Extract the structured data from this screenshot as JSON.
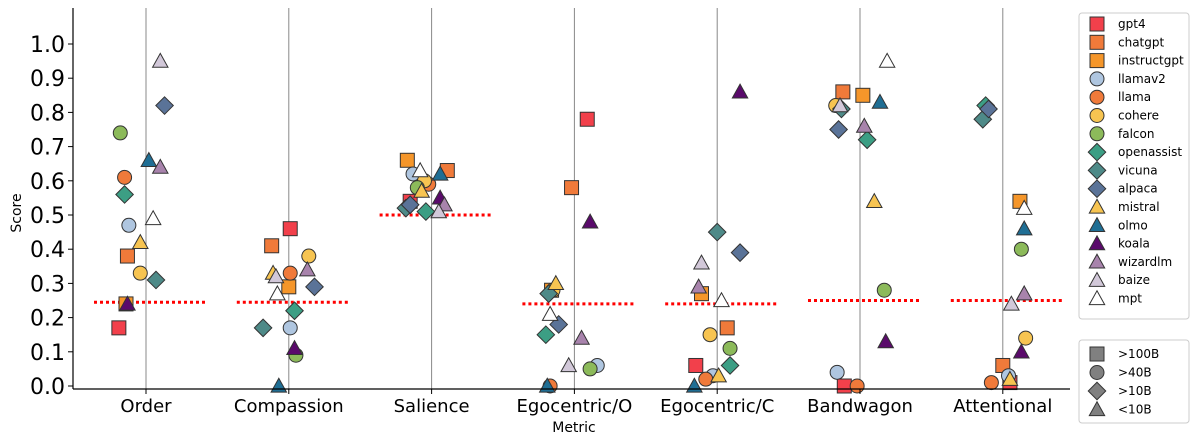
{
  "chart_data": {
    "type": "scatter",
    "title": "",
    "xlabel": "Metric",
    "ylabel": "Score",
    "ylim": [
      0,
      1.1
    ],
    "yticks": [
      "0.0",
      "0.1",
      "0.2",
      "0.3",
      "0.4",
      "0.5",
      "0.6",
      "0.7",
      "0.8",
      "0.9",
      "1.0"
    ],
    "categories": [
      "Order",
      "Compassion",
      "Salience",
      "Egocentric/O",
      "Egocentric/C",
      "Bandwagon",
      "Attentional"
    ],
    "baselines": [
      0.245,
      0.245,
      0.5,
      0.24,
      0.24,
      0.25,
      0.25
    ],
    "baseline_color": "#ff0000",
    "series": [
      {
        "name": "gpt4",
        "color": "#f2404b",
        "marker": "square",
        "values": [
          0.17,
          0.46,
          0.54,
          0.78,
          0.06,
          0.0,
          0.01
        ],
        "jitter": [
          -0.19,
          0.01,
          -0.15,
          0.09,
          -0.15,
          -0.11,
          0.05
        ]
      },
      {
        "name": "chatgpt",
        "color": "#f07a3a",
        "marker": "square",
        "values": [
          0.38,
          0.41,
          0.63,
          0.58,
          0.17,
          0.86,
          0.06
        ],
        "jitter": [
          -0.13,
          -0.12,
          0.11,
          -0.02,
          0.07,
          -0.12,
          0.0
        ]
      },
      {
        "name": "instructgpt",
        "color": "#f5962a",
        "marker": "square",
        "values": [
          0.24,
          0.29,
          0.66,
          0.28,
          0.27,
          0.85,
          0.54
        ],
        "jitter": [
          -0.14,
          0.0,
          -0.17,
          -0.16,
          -0.11,
          0.02,
          0.12
        ]
      },
      {
        "name": "llamav2",
        "color": "#afc6e0",
        "marker": "circle",
        "values": [
          0.47,
          0.17,
          0.62,
          0.06,
          0.03,
          0.04,
          0.03
        ],
        "jitter": [
          -0.12,
          0.01,
          -0.13,
          0.16,
          -0.03,
          -0.16,
          0.04
        ]
      },
      {
        "name": "llama",
        "color": "#f07a3a",
        "marker": "circle",
        "values": [
          0.61,
          0.33,
          0.59,
          0.0,
          0.02,
          0.0,
          0.01
        ],
        "jitter": [
          -0.15,
          0.01,
          -0.02,
          -0.17,
          -0.08,
          -0.02,
          -0.08
        ]
      },
      {
        "name": "cohere",
        "color": "#f7c451",
        "marker": "circle",
        "values": [
          0.33,
          0.38,
          0.6,
          0.28,
          0.15,
          0.82,
          0.14
        ],
        "jitter": [
          -0.04,
          0.14,
          -0.05,
          -0.15,
          -0.05,
          -0.17,
          0.16
        ]
      },
      {
        "name": "falcon",
        "color": "#8cba5a",
        "marker": "circle",
        "values": [
          0.74,
          0.09,
          0.58,
          0.05,
          0.11,
          0.28,
          0.4
        ],
        "jitter": [
          -0.18,
          0.05,
          -0.1,
          0.11,
          0.09,
          0.17,
          0.13
        ]
      },
      {
        "name": "openassist",
        "color": "#3c9e84",
        "marker": "diamond",
        "values": [
          0.56,
          0.22,
          0.51,
          0.15,
          0.06,
          0.72,
          0.82
        ],
        "jitter": [
          -0.15,
          0.04,
          -0.04,
          -0.2,
          0.09,
          0.05,
          -0.12
        ]
      },
      {
        "name": "vicuna",
        "color": "#4e8a88",
        "marker": "diamond",
        "values": [
          0.31,
          0.17,
          0.52,
          0.27,
          0.45,
          0.81,
          0.78
        ],
        "jitter": [
          0.07,
          -0.18,
          -0.18,
          -0.18,
          0.0,
          -0.13,
          -0.14
        ]
      },
      {
        "name": "alpaca",
        "color": "#5a7398",
        "marker": "diamond",
        "values": [
          0.82,
          0.29,
          0.53,
          0.18,
          0.39,
          0.75,
          0.81
        ],
        "jitter": [
          0.13,
          0.18,
          -0.15,
          -0.11,
          0.16,
          -0.15,
          -0.1
        ]
      },
      {
        "name": "mistral",
        "color": "#f7c451",
        "marker": "triangle",
        "values": [
          0.42,
          0.33,
          0.57,
          0.3,
          0.03,
          0.54,
          0.02
        ],
        "jitter": [
          -0.04,
          -0.11,
          -0.07,
          -0.13,
          0.01,
          0.1,
          0.05
        ]
      },
      {
        "name": "olmo",
        "color": "#1f6e94",
        "marker": "triangle",
        "values": [
          0.66,
          0.0,
          0.62,
          0.0,
          0.0,
          0.83,
          0.46
        ],
        "jitter": [
          0.02,
          -0.07,
          0.06,
          -0.19,
          -0.16,
          0.14,
          0.15
        ]
      },
      {
        "name": "koala",
        "color": "#5a0a6b",
        "marker": "triangle",
        "values": [
          0.24,
          0.11,
          0.55,
          0.48,
          0.86,
          0.13,
          0.1
        ],
        "jitter": [
          -0.13,
          0.04,
          0.06,
          0.11,
          0.16,
          0.18,
          0.13
        ]
      },
      {
        "name": "wizardlm",
        "color": "#a883ac",
        "marker": "triangle",
        "values": [
          0.64,
          0.34,
          0.53,
          0.14,
          0.29,
          0.76,
          0.27
        ],
        "jitter": [
          0.1,
          0.13,
          0.09,
          0.05,
          -0.13,
          0.03,
          0.15
        ]
      },
      {
        "name": "baize",
        "color": "#d2c8d9",
        "marker": "triangle",
        "values": [
          0.95,
          0.32,
          0.51,
          0.06,
          0.36,
          0.82,
          0.24
        ],
        "jitter": [
          0.1,
          -0.09,
          0.05,
          -0.04,
          -0.11,
          -0.14,
          0.06
        ]
      },
      {
        "name": "mpt",
        "color": "#ffffff",
        "marker": "triangle",
        "values": [
          0.49,
          0.27,
          0.63,
          0.21,
          0.25,
          0.95,
          0.52
        ],
        "jitter": [
          0.05,
          -0.08,
          -0.08,
          -0.17,
          0.03,
          0.19,
          0.15
        ]
      }
    ],
    "size_legend": [
      {
        "label": ">100B",
        "marker": "square"
      },
      {
        "label": ">40B",
        "marker": "circle"
      },
      {
        "label": ">10B",
        "marker": "diamond"
      },
      {
        "label": "<10B",
        "marker": "triangle"
      }
    ],
    "legend_placement": "right",
    "grid": "vertical lines at categories"
  }
}
